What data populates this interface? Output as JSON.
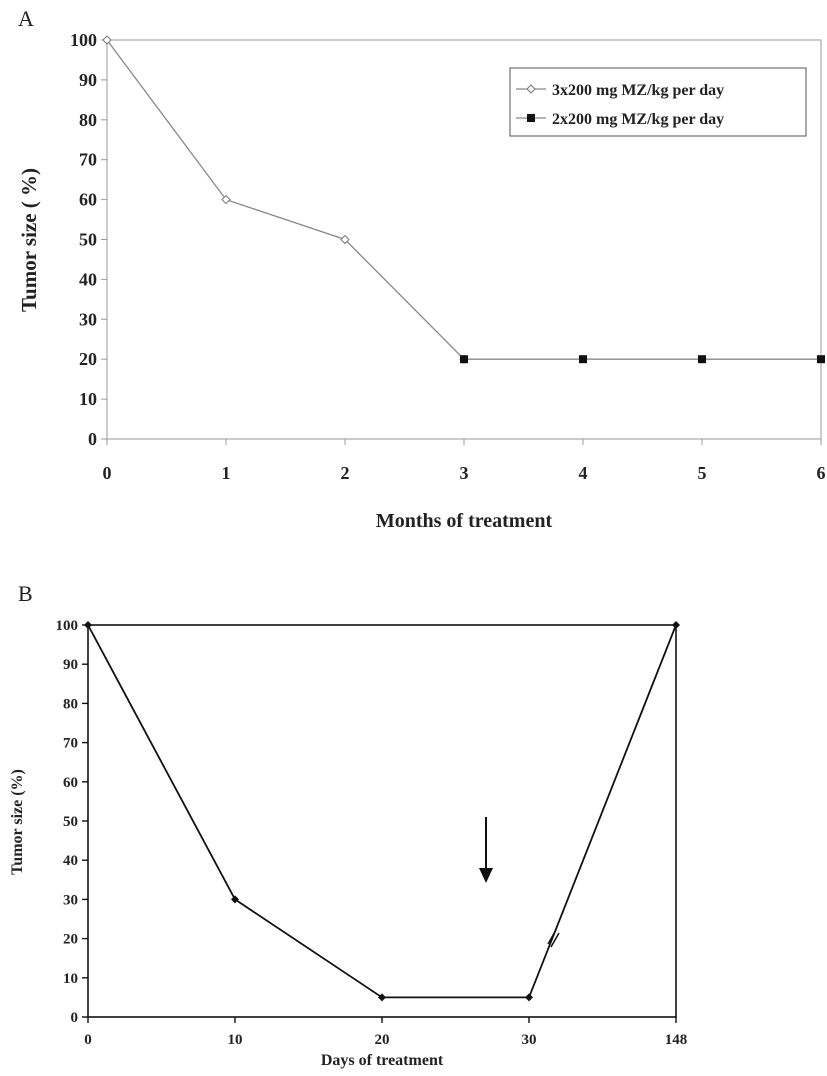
{
  "chart_data": [
    {
      "panel_label": "A",
      "type": "line",
      "xlabel": "Months of treatment",
      "ylabel": "Tumor size ( %)",
      "xlim": [
        0,
        6
      ],
      "ylim": [
        0,
        100
      ],
      "xticks": [
        "0",
        "1",
        "2",
        "3",
        "4",
        "5",
        "6"
      ],
      "yticks": [
        "0",
        "10",
        "20",
        "30",
        "40",
        "50",
        "60",
        "70",
        "80",
        "90",
        "100"
      ],
      "grid": false,
      "legend_position": "top-right",
      "series": [
        {
          "name": "3x200 mg MZ/kg per day",
          "marker": "open-diamond",
          "color": "#888888",
          "x": [
            0,
            1,
            2,
            3
          ],
          "y": [
            100,
            60,
            50,
            20
          ]
        },
        {
          "name": "2x200 mg MZ/kg per day",
          "marker": "filled-square",
          "color": "#888888",
          "x": [
            3,
            4,
            5,
            6
          ],
          "y": [
            20,
            20,
            20,
            20
          ]
        }
      ]
    },
    {
      "panel_label": "B",
      "type": "line",
      "xlabel": "Days of treatment",
      "ylabel": "Tumor size (%)",
      "ylim": [
        0,
        100
      ],
      "categories": [
        "0",
        "10",
        "20",
        "30",
        "148"
      ],
      "yticks": [
        "0",
        "10",
        "20",
        "30",
        "40",
        "50",
        "60",
        "70",
        "80",
        "90",
        "100"
      ],
      "grid": false,
      "axis_break": "//",
      "annotation": "down-arrow",
      "series": [
        {
          "marker": "filled-diamond",
          "color": "#111111",
          "x": [
            "0",
            "10",
            "20",
            "30",
            "148"
          ],
          "y": [
            100,
            30,
            5,
            5,
            100
          ]
        }
      ]
    }
  ]
}
